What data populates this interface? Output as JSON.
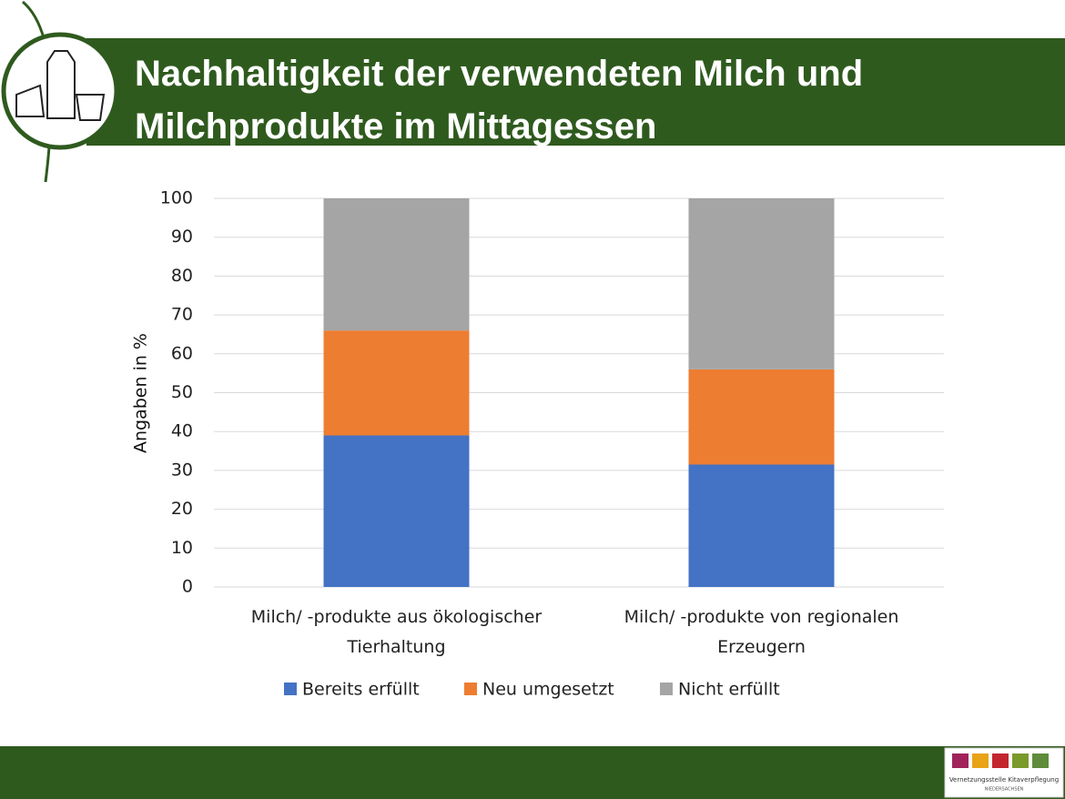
{
  "header": {
    "title": "Nachhaltigkeit der verwendeten Milch und Milchprodukte im Mittagessen"
  },
  "chart_data": {
    "type": "stacked_bar",
    "categories": [
      "Milch/ -produkte aus ökologischer Tierhaltung",
      "Milch/ -produkte von regionalen Erzeugern"
    ],
    "series": [
      {
        "name": "Bereits erfüllt",
        "color": "#4472c4",
        "values": [
          39,
          31.5
        ]
      },
      {
        "name": "Neu umgesetzt",
        "color": "#ed7d31",
        "values": [
          27,
          24.5
        ]
      },
      {
        "name": "Nicht erfüllt",
        "color": "#a5a5a5",
        "values": [
          34,
          44
        ]
      }
    ],
    "ylabel": "Angaben in %",
    "ylim": [
      0,
      100
    ],
    "yticks": [
      0,
      10,
      20,
      30,
      40,
      50,
      60,
      70,
      80,
      90,
      100
    ],
    "grid": true,
    "legend": "bottom"
  },
  "logo": {
    "line1": "Vernetzungsstelle Kitaverpflegung",
    "line2": "NIEDERSACHSEN"
  }
}
